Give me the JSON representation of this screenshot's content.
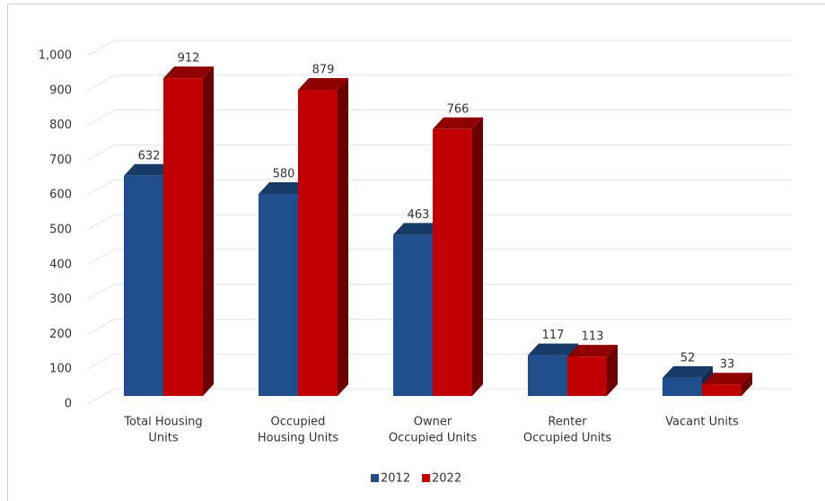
{
  "chart_data": {
    "type": "bar3d",
    "categories": [
      [
        "Total Housing",
        "Units"
      ],
      [
        "Occupied",
        "Housing Units"
      ],
      [
        "Owner",
        "Occupied Units"
      ],
      [
        "Renter",
        "Occupied Units"
      ],
      [
        "Vacant Units"
      ]
    ],
    "series": [
      {
        "name": "2012",
        "color": "#1f4e8c",
        "values": [
          632,
          580,
          463,
          117,
          52
        ]
      },
      {
        "name": "2022",
        "color": "#c00000",
        "values": [
          912,
          879,
          766,
          113,
          33
        ]
      }
    ],
    "ylim": [
      0,
      1000
    ],
    "yticks": [
      0,
      100,
      200,
      300,
      400,
      500,
      600,
      700,
      800,
      900,
      {
        "value": 1000,
        "label": "1,000"
      }
    ],
    "grid": true,
    "legend": "bottom"
  }
}
